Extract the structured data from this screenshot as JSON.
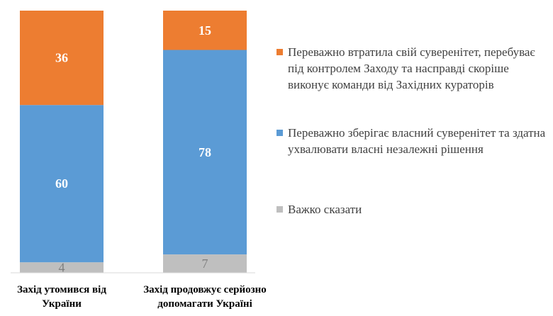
{
  "chart_data": {
    "type": "bar",
    "stacked": true,
    "categories": [
      "Захід утомився від України",
      "Захід продовжує серйозно допомагати Україні"
    ],
    "category_lines": [
      [
        "Захід утомився від",
        "України"
      ],
      [
        "Захід продовжує серйозно",
        "допомагати Україні"
      ]
    ],
    "series": [
      {
        "name": "Важко сказати",
        "values": [
          4,
          7
        ],
        "color": "#bfbfbf"
      },
      {
        "name": "Переважно зберігає власний суверенітет та здатна ухвалювати власні незалежні рішення",
        "values": [
          60,
          78
        ],
        "color": "#5b9bd5"
      },
      {
        "name": "Переважно втратила свій суверенітет, перебуває під контролем Заходу та насправді скоріше виконує команди від Західних кураторів",
        "values": [
          36,
          15
        ],
        "color": "#ed7d31"
      }
    ],
    "ylim": [
      0,
      100
    ],
    "grid": false,
    "legend_position": "right"
  }
}
